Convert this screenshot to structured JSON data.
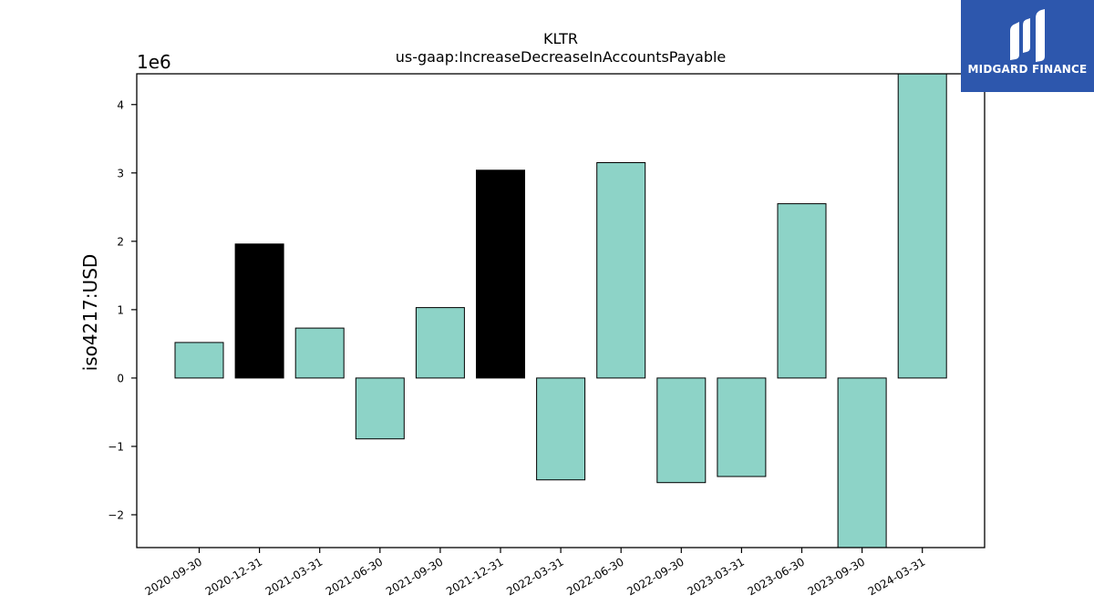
{
  "chart_data": {
    "type": "bar",
    "title": "KLTR",
    "subtitle": "us-gaap:IncreaseDecreaseInAccountsPayable",
    "ylabel": "iso4217:USD",
    "xlabel": "",
    "offset_label": "1e6",
    "ylim": [
      -2.48,
      4.45
    ],
    "yticks": [
      -2,
      -1,
      0,
      1,
      2,
      3,
      4
    ],
    "ytick_labels": [
      "−2",
      "−1",
      "0",
      "1",
      "2",
      "3",
      "4"
    ],
    "categories": [
      "2020-09-30",
      "2020-12-31",
      "2021-03-31",
      "2021-06-30",
      "2021-09-30",
      "2021-12-31",
      "2022-03-31",
      "2022-06-30",
      "2022-09-30",
      "2023-03-31",
      "2023-06-30",
      "2023-09-30",
      "2024-03-31"
    ],
    "values": [
      0.52,
      1.96,
      0.73,
      -0.89,
      1.03,
      3.04,
      -1.49,
      3.15,
      -1.53,
      -1.44,
      2.55,
      -2.48,
      4.45
    ],
    "highlighted": [
      "2020-12-31",
      "2021-12-31"
    ],
    "colors": {
      "bar": "#8dd3c7",
      "highlight": "#000000",
      "edge": "#000000"
    },
    "grid": false,
    "legend": "none"
  },
  "brand": {
    "name": "MIDGARD FINANCE",
    "background": "#2d57ad"
  }
}
